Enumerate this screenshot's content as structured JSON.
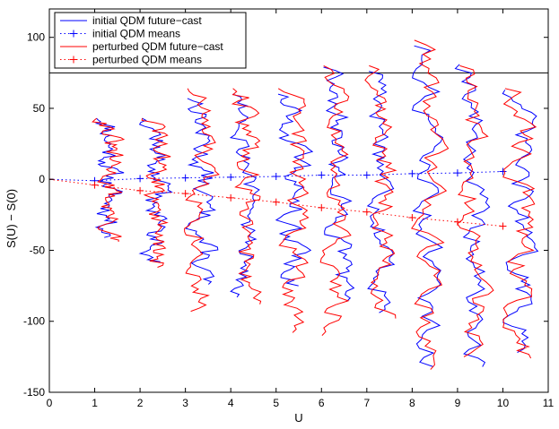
{
  "chart_data": {
    "type": "line",
    "title": "",
    "xlabel": "U",
    "ylabel": "S(U) − S(0)",
    "xlim": [
      0,
      11
    ],
    "ylim": [
      -150,
      120
    ],
    "xticks": [
      0,
      1,
      2,
      3,
      4,
      5,
      6,
      7,
      8,
      9,
      10,
      11
    ],
    "yticks": [
      -150,
      -100,
      -50,
      0,
      50,
      100
    ],
    "grid": false,
    "legend_position": "top-left",
    "reference_line_y": 75,
    "colors": {
      "initial": "#0000ff",
      "perturbed": "#ff0000"
    },
    "series": [
      {
        "name": "initial QDM future−cast",
        "style": "solid",
        "description_note": "",
        "distributions": [
          {
            "u": 1,
            "scale": 0.08,
            "ymin": -41,
            "ymax": 43,
            "seed": 11
          },
          {
            "u": 2,
            "scale": 0.09,
            "ymin": -58,
            "ymax": 43,
            "seed": 12
          },
          {
            "u": 3,
            "scale": 0.09,
            "ymin": -74,
            "ymax": 57,
            "seed": 13
          },
          {
            "u": 4,
            "scale": 0.09,
            "ymin": -83,
            "ymax": 60,
            "seed": 14
          },
          {
            "u": 5,
            "scale": 0.09,
            "ymin": -75,
            "ymax": 60,
            "seed": 15
          },
          {
            "u": 6,
            "scale": 0.09,
            "ymin": -86,
            "ymax": 79,
            "seed": 16
          },
          {
            "u": 7,
            "scale": 0.09,
            "ymin": -94,
            "ymax": 76,
            "seed": 17
          },
          {
            "u": 8,
            "scale": 0.09,
            "ymin": -132,
            "ymax": 94,
            "seed": 18
          },
          {
            "u": 9,
            "scale": 0.09,
            "ymin": -132,
            "ymax": 81,
            "seed": 19
          },
          {
            "u": 10,
            "scale": 0.09,
            "ymin": -122,
            "ymax": 63,
            "seed": 20
          }
        ]
      },
      {
        "name": "initial QDM means",
        "style": "dotted-plus",
        "points": [
          [
            0,
            0
          ],
          [
            1,
            -1
          ],
          [
            2,
            0.5
          ],
          [
            3,
            1
          ],
          [
            4,
            1.5
          ],
          [
            5,
            2
          ],
          [
            6,
            3
          ],
          [
            7,
            3
          ],
          [
            8,
            4
          ],
          [
            9,
            4.5
          ],
          [
            10,
            5.5
          ]
        ]
      },
      {
        "name": "perturbed QDM future−cast",
        "style": "solid",
        "distributions": [
          {
            "u": 1,
            "scale": 0.08,
            "ymin": -44,
            "ymax": 43,
            "seed": 31
          },
          {
            "u": 2,
            "scale": 0.09,
            "ymin": -62,
            "ymax": 43,
            "seed": 32
          },
          {
            "u": 3,
            "scale": 0.09,
            "ymin": -93,
            "ymax": 64,
            "seed": 33
          },
          {
            "u": 4,
            "scale": 0.09,
            "ymin": -88,
            "ymax": 64,
            "seed": 34
          },
          {
            "u": 5,
            "scale": 0.09,
            "ymin": -108,
            "ymax": 64,
            "seed": 35
          },
          {
            "u": 6,
            "scale": 0.09,
            "ymin": -110,
            "ymax": 80,
            "seed": 36
          },
          {
            "u": 7,
            "scale": 0.09,
            "ymin": -98,
            "ymax": 80,
            "seed": 37
          },
          {
            "u": 8,
            "scale": 0.09,
            "ymin": -134,
            "ymax": 98,
            "seed": 38
          },
          {
            "u": 9,
            "scale": 0.09,
            "ymin": -125,
            "ymax": 80,
            "seed": 39
          },
          {
            "u": 10,
            "scale": 0.09,
            "ymin": -126,
            "ymax": 64,
            "seed": 40
          }
        ]
      },
      {
        "name": "perturbed QDM means",
        "style": "dotted-plus",
        "points": [
          [
            0,
            0
          ],
          [
            1,
            -4
          ],
          [
            2,
            -8
          ],
          [
            3,
            -10
          ],
          [
            4,
            -13
          ],
          [
            5,
            -16
          ],
          [
            6,
            -20
          ],
          [
            7,
            -23
          ],
          [
            8,
            -27
          ],
          [
            9,
            -30
          ],
          [
            10,
            -33
          ]
        ]
      }
    ]
  },
  "legend": [
    {
      "label": "initial QDM future−cast",
      "color": "#0000ff",
      "kind": "line"
    },
    {
      "label": "initial QDM means",
      "color": "#0000ff",
      "kind": "dotted-plus"
    },
    {
      "label": "perturbed QDM future−cast",
      "color": "#ff0000",
      "kind": "line"
    },
    {
      "label": "perturbed QDM means",
      "color": "#ff0000",
      "kind": "dotted-plus"
    }
  ]
}
